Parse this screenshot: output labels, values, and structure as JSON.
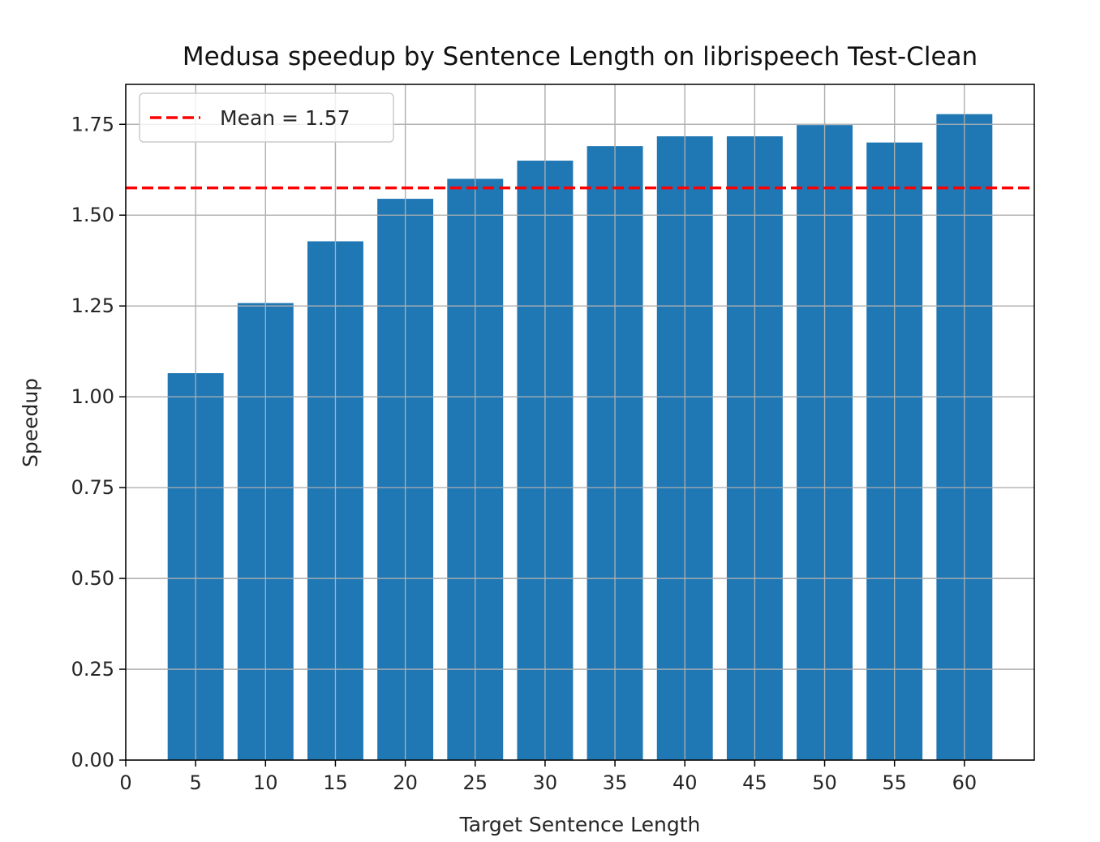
{
  "chart_data": {
    "type": "bar",
    "title": "Medusa speedup by Sentence Length on librispeech Test-Clean",
    "xlabel": "Target Sentence Length",
    "ylabel": "Speedup",
    "x": [
      5,
      10,
      15,
      20,
      25,
      30,
      35,
      40,
      45,
      50,
      55,
      60
    ],
    "values": [
      1.065,
      1.258,
      1.428,
      1.545,
      1.6,
      1.65,
      1.69,
      1.717,
      1.717,
      1.748,
      1.7,
      1.778
    ],
    "bar_width": 4,
    "xlim": [
      0,
      65
    ],
    "ylim": [
      0,
      1.86
    ],
    "xticks": [
      0,
      5,
      10,
      15,
      20,
      25,
      30,
      35,
      40,
      45,
      50,
      55,
      60
    ],
    "xtick_labels": [
      "0",
      "5",
      "10",
      "15",
      "20",
      "25",
      "30",
      "35",
      "40",
      "45",
      "50",
      "55",
      "60"
    ],
    "yticks": [
      0,
      0.25,
      0.5,
      0.75,
      1.0,
      1.25,
      1.5,
      1.75
    ],
    "ytick_labels": [
      "0.00",
      "0.25",
      "0.50",
      "0.75",
      "1.00",
      "1.25",
      "1.50",
      "1.75"
    ],
    "grid": true,
    "bar_color": "#1f77b4",
    "mean_line": {
      "value": 1.575,
      "label": "Mean = 1.57",
      "color": "#ff0000",
      "style": "dashed"
    },
    "legend": {
      "position": "top-left",
      "entries": [
        "Mean = 1.57"
      ]
    }
  }
}
